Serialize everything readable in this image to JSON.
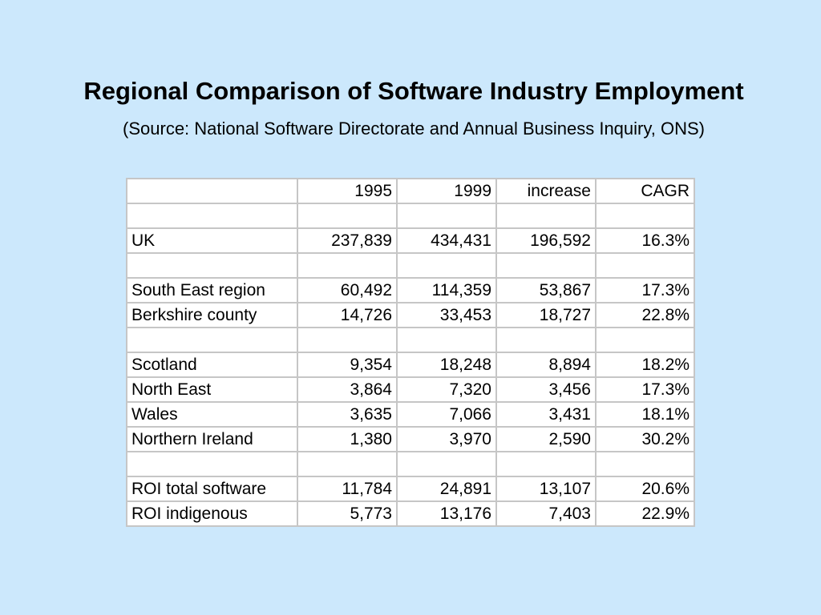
{
  "slide": {
    "title": "Regional Comparison of Software Industry Employment",
    "subtitle": "(Source: National Software Directorate and Annual Business Inquiry, ONS)"
  },
  "table": {
    "header": [
      "",
      "1995",
      "1999",
      "increase",
      "CAGR"
    ],
    "rows": [
      [
        "",
        "",
        "",
        "",
        ""
      ],
      [
        "UK",
        "237,839",
        "434,431",
        "196,592",
        "16.3%"
      ],
      [
        "",
        "",
        "",
        "",
        ""
      ],
      [
        "South East region",
        "60,492",
        "114,359",
        "53,867",
        "17.3%"
      ],
      [
        "Berkshire county",
        "14,726",
        "33,453",
        "18,727",
        "22.8%"
      ],
      [
        "",
        "",
        "",
        "",
        ""
      ],
      [
        "Scotland",
        "9,354",
        "18,248",
        "8,894",
        "18.2%"
      ],
      [
        "North East",
        "3,864",
        "7,320",
        "3,456",
        "17.3%"
      ],
      [
        "Wales",
        "3,635",
        "7,066",
        "3,431",
        "18.1%"
      ],
      [
        "Northern Ireland",
        "1,380",
        "3,970",
        "2,590",
        "30.2%"
      ],
      [
        "",
        "",
        "",
        "",
        ""
      ],
      [
        "ROI total software",
        "11,784",
        "24,891",
        "13,107",
        "20.6%"
      ],
      [
        "ROI indigenous",
        "5,773",
        "13,176",
        "7,403",
        "22.9%"
      ]
    ]
  }
}
